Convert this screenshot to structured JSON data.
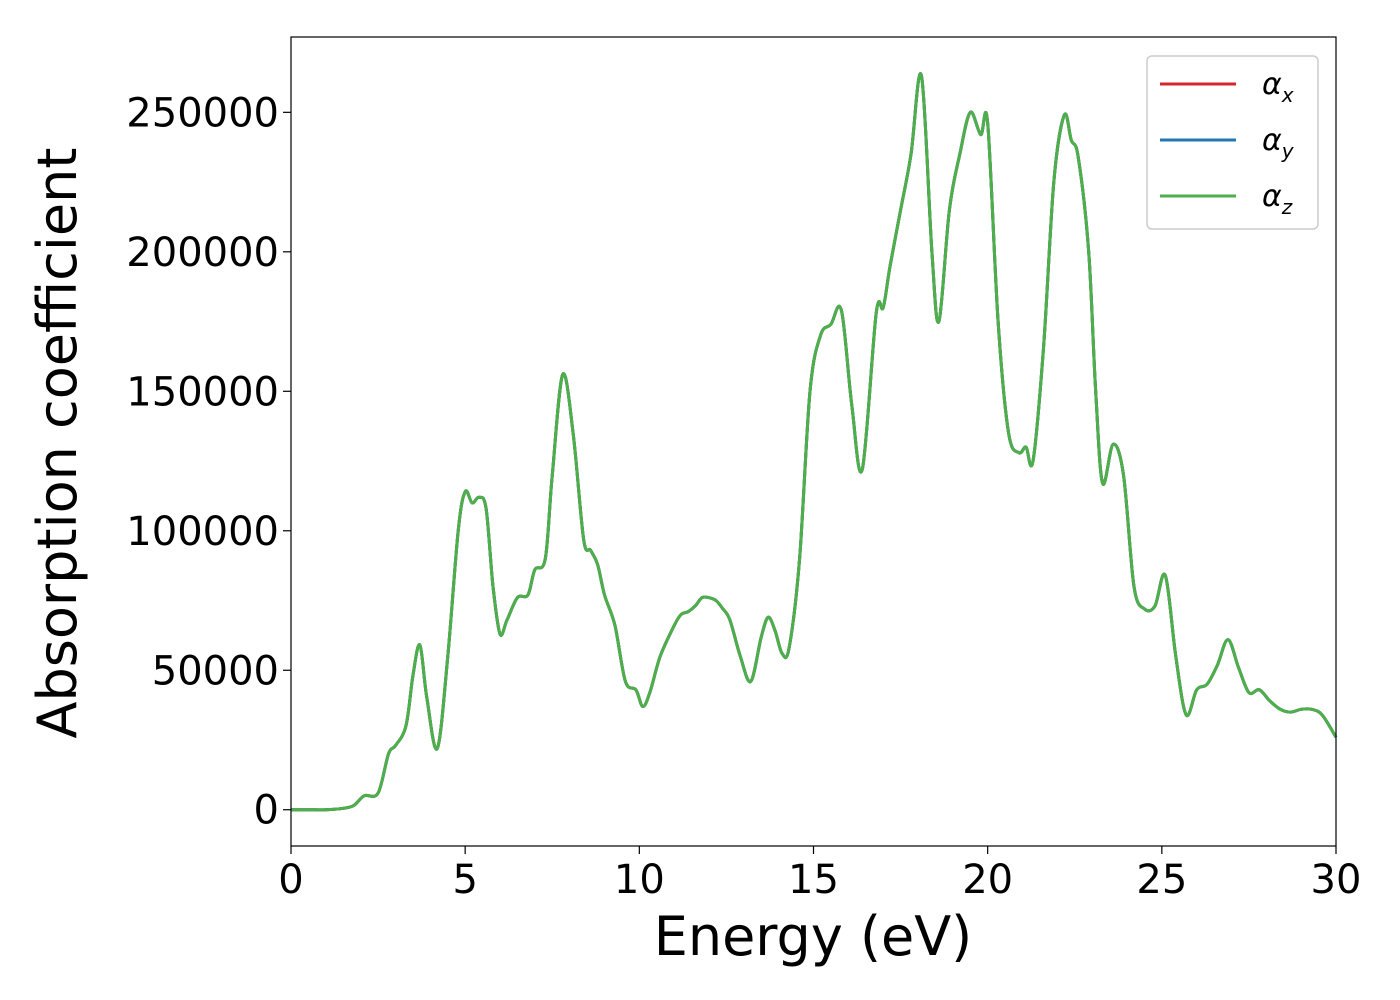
{
  "chart_data": {
    "type": "line",
    "xlabel": "Energy (eV)",
    "ylabel": "Absorption coefficient",
    "xlim": [
      0,
      30
    ],
    "ylim": [
      -13000,
      277000
    ],
    "xticks": [
      0,
      5,
      10,
      15,
      20,
      25,
      30
    ],
    "xtick_labels": [
      "0",
      "5",
      "10",
      "15",
      "20",
      "25",
      "30"
    ],
    "yticks": [
      0,
      50000,
      100000,
      150000,
      200000,
      250000
    ],
    "ytick_labels": [
      "0",
      "50000",
      "100000",
      "150000",
      "200000",
      "250000"
    ],
    "grid": false,
    "legend_position": "top-right",
    "series": [
      {
        "name": "α_x",
        "legend_main": "α",
        "legend_sub": "x",
        "color": "#d62728"
      },
      {
        "name": "α_y",
        "legend_main": "α",
        "legend_sub": "y",
        "color": "#1f77b4"
      },
      {
        "name": "α_z",
        "legend_main": "α",
        "legend_sub": "z",
        "color": "#4daf4a"
      }
    ],
    "x": [
      0,
      0.5,
      1.0,
      1.5,
      1.8,
      2.1,
      2.5,
      2.8,
      3.0,
      3.3,
      3.5,
      3.7,
      3.9,
      4.2,
      4.5,
      4.8,
      5.0,
      5.2,
      5.4,
      5.6,
      5.8,
      6.0,
      6.2,
      6.5,
      6.8,
      7.0,
      7.3,
      7.5,
      7.8,
      8.1,
      8.4,
      8.6,
      8.8,
      9.0,
      9.3,
      9.6,
      9.9,
      10.1,
      10.3,
      10.6,
      11.0,
      11.2,
      11.4,
      11.6,
      11.8,
      12.0,
      12.2,
      12.4,
      12.6,
      12.9,
      13.2,
      13.5,
      13.7,
      13.9,
      14.1,
      14.3,
      14.6,
      14.9,
      15.2,
      15.5,
      15.8,
      16.1,
      16.4,
      16.8,
      17.0,
      17.2,
      17.5,
      17.8,
      18.1,
      18.4,
      18.6,
      18.9,
      19.2,
      19.5,
      19.8,
      20.0,
      20.3,
      20.6,
      20.9,
      21.1,
      21.3,
      21.6,
      21.9,
      22.2,
      22.4,
      22.6,
      22.9,
      23.1,
      23.3,
      23.6,
      23.9,
      24.2,
      24.5,
      24.8,
      25.1,
      25.4,
      25.7,
      26.0,
      26.3,
      26.6,
      26.9,
      27.2,
      27.5,
      27.8,
      28.1,
      28.4,
      28.7,
      29.0,
      29.3,
      29.6,
      30.0
    ],
    "y_alpha_z": [
      0,
      0,
      0,
      500,
      1500,
      5000,
      6000,
      20000,
      23000,
      30000,
      48000,
      59000,
      40000,
      22000,
      55000,
      100000,
      114000,
      110000,
      112000,
      108000,
      80000,
      63000,
      68000,
      76000,
      77000,
      86000,
      90000,
      120000,
      156000,
      135000,
      97000,
      93000,
      88000,
      77000,
      66000,
      46000,
      43000,
      37000,
      42000,
      55000,
      66000,
      70000,
      71000,
      73000,
      76000,
      76000,
      75000,
      72000,
      68000,
      55000,
      46000,
      62000,
      69000,
      64000,
      56000,
      58000,
      90000,
      150000,
      170000,
      174000,
      179000,
      145000,
      122000,
      178000,
      180000,
      195000,
      215000,
      235000,
      263000,
      200000,
      175000,
      215000,
      235000,
      250000,
      242000,
      246000,
      175000,
      135000,
      128000,
      130000,
      125000,
      165000,
      225000,
      249000,
      240000,
      234000,
      200000,
      150000,
      117000,
      131000,
      120000,
      80000,
      72000,
      73000,
      84000,
      55000,
      34000,
      43000,
      45000,
      52000,
      61000,
      51000,
      42000,
      43000,
      39000,
      36000,
      35000,
      36000,
      36000,
      34000,
      26000
    ]
  }
}
